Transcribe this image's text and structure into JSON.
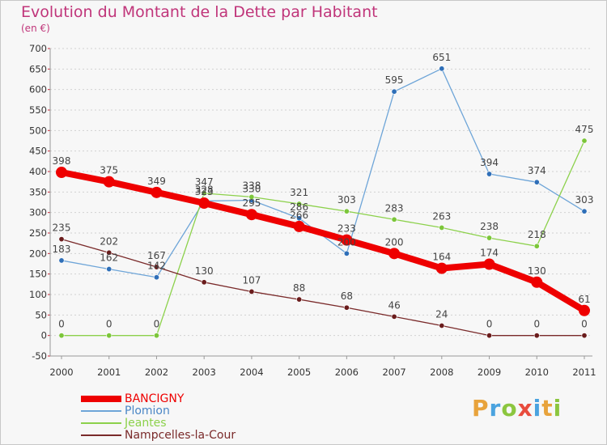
{
  "title": "Evolution du Montant de la Dette par Habitant",
  "subtitle": "(en €)",
  "logo": {
    "text": "Proxiti",
    "letters": [
      {
        "ch": "P",
        "color": "#e8a33c"
      },
      {
        "ch": "r",
        "color": "#4aa3df"
      },
      {
        "ch": "o",
        "color": "#8cc63f"
      },
      {
        "ch": "x",
        "color": "#e84c3d"
      },
      {
        "ch": "i",
        "color": "#4aa3df"
      },
      {
        "ch": "t",
        "color": "#e8a33c"
      },
      {
        "ch": "i",
        "color": "#8cc63f"
      }
    ]
  },
  "chart_data": {
    "type": "line",
    "title": "Evolution du Montant de la Dette par Habitant",
    "subtitle": "(en €)",
    "x": [
      "2000",
      "2001",
      "2002",
      "2003",
      "2004",
      "2005",
      "2006",
      "2007",
      "2008",
      "2009",
      "2010",
      "2011"
    ],
    "ylim": [
      -50,
      700
    ],
    "yticks": [
      "-50",
      "0",
      "50",
      "100",
      "150",
      "200",
      "250",
      "300",
      "350",
      "400",
      "450",
      "500",
      "550",
      "600",
      "650",
      "700"
    ],
    "ytick_values": [
      -50,
      0,
      50,
      100,
      150,
      200,
      250,
      300,
      350,
      400,
      450,
      500,
      550,
      600,
      650,
      700
    ],
    "grid": "horizontal dotted",
    "legend_position": "bottom-left",
    "series": [
      {
        "name": "BANCIGNY",
        "color": "#ee0000",
        "line_color": "#ee0000",
        "marker": "#ee0000",
        "highlight": true,
        "values": [
          398,
          375,
          349,
          323,
          295,
          266,
          233,
          200,
          164,
          174,
          130,
          61
        ],
        "labels": [
          "398",
          "375",
          "349",
          "323",
          "295",
          "266",
          "233",
          "200",
          "164",
          "174",
          "130",
          "61"
        ]
      },
      {
        "name": "Plomion",
        "color": "#4a86c6",
        "line_color": "#6ea5d8",
        "marker": "#2f6fb8",
        "values": [
          183,
          162,
          142,
          328,
          330,
          286,
          200,
          595,
          651,
          394,
          374,
          303
        ],
        "labels": [
          "183",
          "162",
          "142",
          "328",
          "330",
          "286",
          "200",
          "595",
          "651",
          "394",
          "374",
          "303"
        ]
      },
      {
        "name": "Jeantes",
        "color": "#8cd14b",
        "line_color": "#8cd14b",
        "marker": "#7cc63a",
        "values": [
          0,
          0,
          0,
          347,
          338,
          321,
          303,
          283,
          263,
          238,
          218,
          475
        ],
        "labels": [
          "0",
          "0",
          "0",
          "347",
          "338",
          "321",
          "303",
          "283",
          "263",
          "238",
          "218",
          "475"
        ]
      },
      {
        "name": "Nampcelles-la-Cour",
        "color": "#7a2a2a",
        "line_color": "#7a2a2a",
        "marker": "#6a1c1c",
        "values": [
          235,
          202,
          167,
          130,
          107,
          88,
          68,
          46,
          24,
          0,
          0,
          0
        ],
        "labels": [
          "235",
          "202",
          "167",
          "130",
          "107",
          "88",
          "68",
          "46",
          "24",
          "0",
          "0",
          "0"
        ]
      }
    ]
  }
}
